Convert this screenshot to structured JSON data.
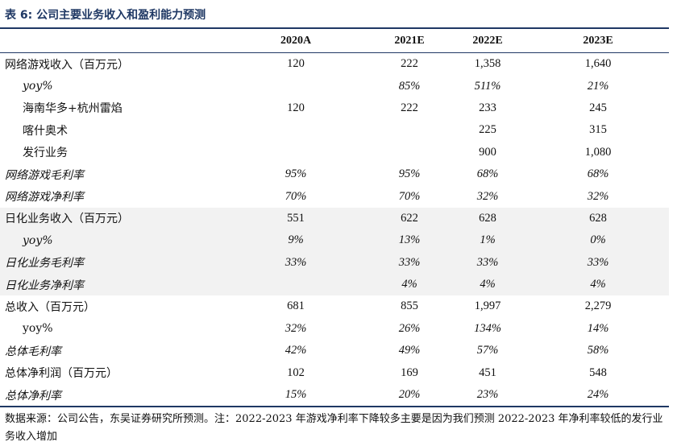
{
  "title": "表 6:  公司主要业务收入和盈利能力预测",
  "headers": [
    "",
    "2020A",
    "2021E",
    "2022E",
    "2023E"
  ],
  "rows": [
    {
      "label": "网络游戏收入（百万元）",
      "values": [
        "120",
        "222",
        "1,358",
        "1,640"
      ],
      "italic": false,
      "indent": false,
      "shade": false
    },
    {
      "label": "yoy%",
      "values": [
        "",
        "85%",
        "511%",
        "21%"
      ],
      "italic": true,
      "indent": true,
      "shade": false
    },
    {
      "label": "海南华多+杭州雷焰",
      "values": [
        "120",
        "222",
        "233",
        "245"
      ],
      "italic": false,
      "indent": true,
      "shade": false
    },
    {
      "label": "喀什奥术",
      "values": [
        "",
        "",
        "225",
        "315"
      ],
      "italic": false,
      "indent": true,
      "shade": false
    },
    {
      "label": "发行业务",
      "values": [
        "",
        "",
        "900",
        "1,080"
      ],
      "italic": false,
      "indent": true,
      "shade": false
    },
    {
      "label": "网络游戏毛利率",
      "values": [
        "95%",
        "95%",
        "68%",
        "68%"
      ],
      "italic": true,
      "indent": false,
      "shade": false
    },
    {
      "label": "网络游戏净利率",
      "values": [
        "70%",
        "70%",
        "32%",
        "32%"
      ],
      "italic": true,
      "indent": false,
      "shade": false
    },
    {
      "label": "日化业务收入（百万元）",
      "values": [
        "551",
        "622",
        "628",
        "628"
      ],
      "italic": false,
      "indent": false,
      "shade": true
    },
    {
      "label": "yoy%",
      "values": [
        "9%",
        "13%",
        "1%",
        "0%"
      ],
      "italic": true,
      "indent": true,
      "shade": true
    },
    {
      "label": "日化业务毛利率",
      "values": [
        "33%",
        "33%",
        "33%",
        "33%"
      ],
      "italic": true,
      "indent": false,
      "shade": true
    },
    {
      "label": "日化业务净利率",
      "values": [
        "",
        "4%",
        "4%",
        "4%"
      ],
      "italic": true,
      "indent": false,
      "shade": true
    },
    {
      "label": "总收入（百万元）",
      "values": [
        "681",
        "855",
        "1,997",
        "2,279"
      ],
      "italic": false,
      "indent": false,
      "shade": false
    },
    {
      "label": "yoy%",
      "values": [
        "32%",
        "26%",
        "134%",
        "14%"
      ],
      "italic": false,
      "indent": true,
      "shade": false,
      "values_italic": true
    },
    {
      "label": "总体毛利率",
      "values": [
        "42%",
        "49%",
        "57%",
        "58%"
      ],
      "italic": true,
      "indent": false,
      "shade": false
    },
    {
      "label": "总体净利润（百万元）",
      "values": [
        "102",
        "169",
        "451",
        "548"
      ],
      "italic": false,
      "indent": false,
      "shade": false
    },
    {
      "label": "总体净利率",
      "values": [
        "15%",
        "20%",
        "23%",
        "24%"
      ],
      "italic": true,
      "indent": false,
      "shade": false
    }
  ],
  "note": "数据来源：公司公告，东吴证券研究所预测。注：2022-2023 年游戏净利率下降较多主要是因为我们预测 2022-2023 年净利率较低的发行业务收入增加"
}
